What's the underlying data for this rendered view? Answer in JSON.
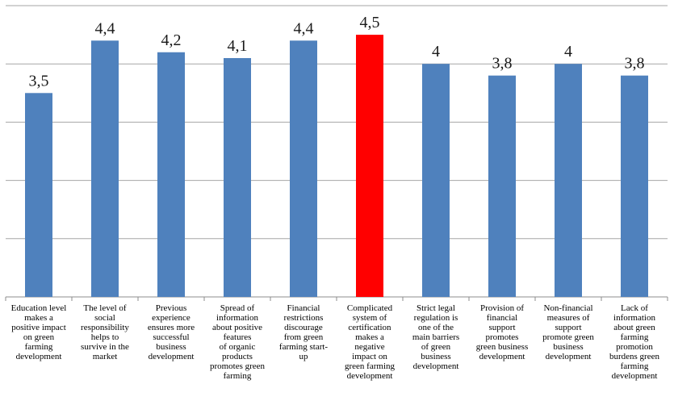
{
  "chart_data": {
    "type": "bar",
    "categories": [
      "Education level\nmakes a\npositive impact\non green\nfarming\ndevelopment",
      "The level of\nsocial\nresponsibility\nhelps to\nsurvive in the\nmarket",
      "Previous\nexperience\nensures more\nsuccessful\nbusiness\ndevelopment",
      "Spread of\ninformation\nabout positive\nfeatures\nof organic\nproducts\npromotes green\nfarming",
      "Financial\nrestrictions\ndiscourage\nfrom green\nfarming start-\nup",
      "Complicated\nsystem of\ncertification\nmakes a\nnegative\nimpact on\ngreen farming\ndevelopment",
      "Strict legal\nregulation is\none of the\nmain barriers\nof green\nbusiness\ndevelopment",
      "Provision of\nfinancial\nsupport\npromotes\ngreen business\ndevelopment",
      "Non-financial\nmeasures of\nsupport\npromote green\nbusiness\ndevelopment",
      "Lack of\ninformation\nabout green\nfarming\npromotion\nburdens green\nfarming\ndevelopment"
    ],
    "values": [
      3.5,
      4.4,
      4.2,
      4.1,
      4.4,
      4.5,
      4.0,
      3.8,
      4.0,
      3.8
    ],
    "data_labels": [
      "3,5",
      "4,4",
      "4,2",
      "4,1",
      "4,4",
      "4,5",
      "4",
      "3,8",
      "4",
      "3,8"
    ],
    "ylim": [
      0,
      5
    ],
    "grid": true,
    "colors": {
      "default": "#4f81bd",
      "highlight": "#ff0000"
    },
    "highlight_index": 5
  }
}
